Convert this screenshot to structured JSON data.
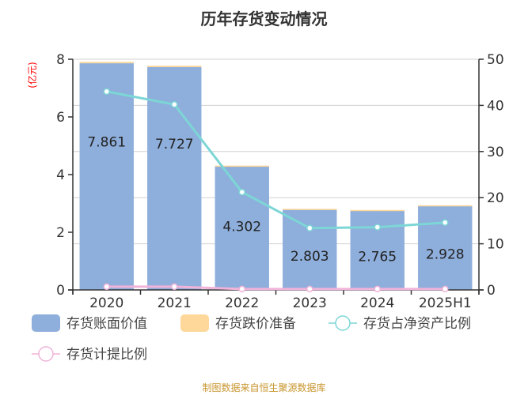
{
  "title": "历年存货变动情况",
  "footer": "制图数据来自恒生聚源数据库",
  "left_axis_unit": "(亿元)",
  "right_axis_unit": "%",
  "legend": [
    {
      "label": "存货账面价值",
      "type": "bar",
      "color": "#8eaedb"
    },
    {
      "label": "存货跌价准备",
      "type": "bar",
      "color": "#fdd89a"
    },
    {
      "label": "存货占净资产比例",
      "type": "line",
      "color": "#7dd6d6"
    },
    {
      "label": "存货计提比例",
      "type": "line",
      "color": "#f0b3d9"
    }
  ],
  "chart_data": {
    "type": "bar",
    "title": "历年存货变动情况",
    "categories": [
      "2020",
      "2021",
      "2022",
      "2023",
      "2024",
      "2025H1"
    ],
    "series": [
      {
        "name": "存货账面价值",
        "type": "bar",
        "axis": "left",
        "values": [
          7.861,
          7.727,
          4.302,
          2.803,
          2.765,
          2.928
        ]
      },
      {
        "name": "存货跌价准备",
        "type": "bar",
        "axis": "left",
        "stacked": true,
        "values": [
          0.05,
          0.05,
          0.01,
          0.01,
          0.01,
          0.01
        ]
      },
      {
        "name": "存货占净资产比例",
        "type": "line",
        "axis": "right",
        "values": [
          43.0,
          40.2,
          21.2,
          13.4,
          13.6,
          14.6
        ]
      },
      {
        "name": "存货计提比例",
        "type": "line",
        "axis": "right",
        "values": [
          0.7,
          0.7,
          0.2,
          0.2,
          0.2,
          0.2
        ]
      }
    ],
    "ylabel_left": "(亿元)",
    "ylabel_right": "%",
    "ylim_left": [
      0,
      8
    ],
    "ylim_right": [
      0,
      50
    ],
    "yticks_left": [
      "0",
      "2",
      "4",
      "6",
      "8"
    ],
    "yticks_right": [
      "0",
      "10",
      "20",
      "30",
      "40",
      "50"
    ],
    "grid": true,
    "legend_position": "bottom"
  }
}
